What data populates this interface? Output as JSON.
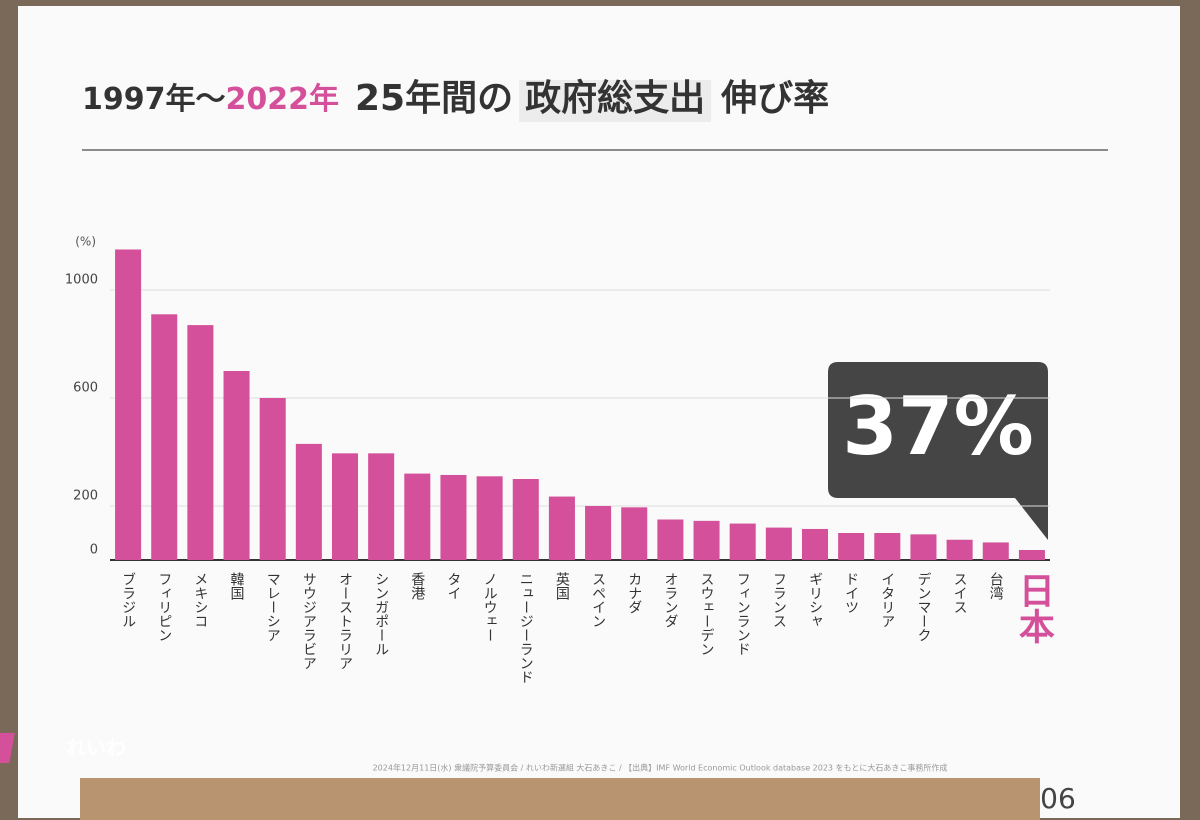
{
  "chart_data": {
    "type": "bar",
    "title_parts": [
      "1997年～",
      "2022年",
      "25年間の",
      "政府総支出",
      "伸び率"
    ],
    "y_unit": "(%)",
    "categories": [
      "ブラジル",
      "フィリピン",
      "メキシコ",
      "韓国",
      "マレーシア",
      "サウジアラビア",
      "オーストラリア",
      "シンガポール",
      "香港",
      "タイ",
      "ノルウェー",
      "ニュージーランド",
      "英国",
      "スペイン",
      "カナダ",
      "オランダ",
      "スウェーデン",
      "フィンランド",
      "フランス",
      "ギリシャ",
      "ドイツ",
      "イタリア",
      "デンマーク",
      "スイス",
      "台湾",
      "日本"
    ],
    "values": [
      1150,
      910,
      870,
      700,
      600,
      430,
      395,
      395,
      320,
      315,
      310,
      300,
      235,
      200,
      195,
      150,
      145,
      135,
      120,
      115,
      100,
      100,
      95,
      75,
      65,
      37
    ],
    "value_labels": [
      null,
      null,
      null,
      null,
      null,
      null,
      null,
      null,
      null,
      null,
      null,
      null,
      null,
      null,
      null,
      null,
      null,
      null,
      null,
      null,
      null,
      null,
      null,
      null,
      null,
      "37%"
    ],
    "color": "#d4509a",
    "ylim": [
      0,
      1200
    ],
    "yticks": [
      0,
      200,
      600,
      1000
    ],
    "grid": true
  },
  "logo": "れいわ",
  "footer": "2024年12月11日(水) 衆議院予算委員会 / れいわ新選組 大石あきこ / 【出典】IMF World Economic Outlook database 2023 をもとに大石あきこ事務所作成",
  "page_number": "06"
}
